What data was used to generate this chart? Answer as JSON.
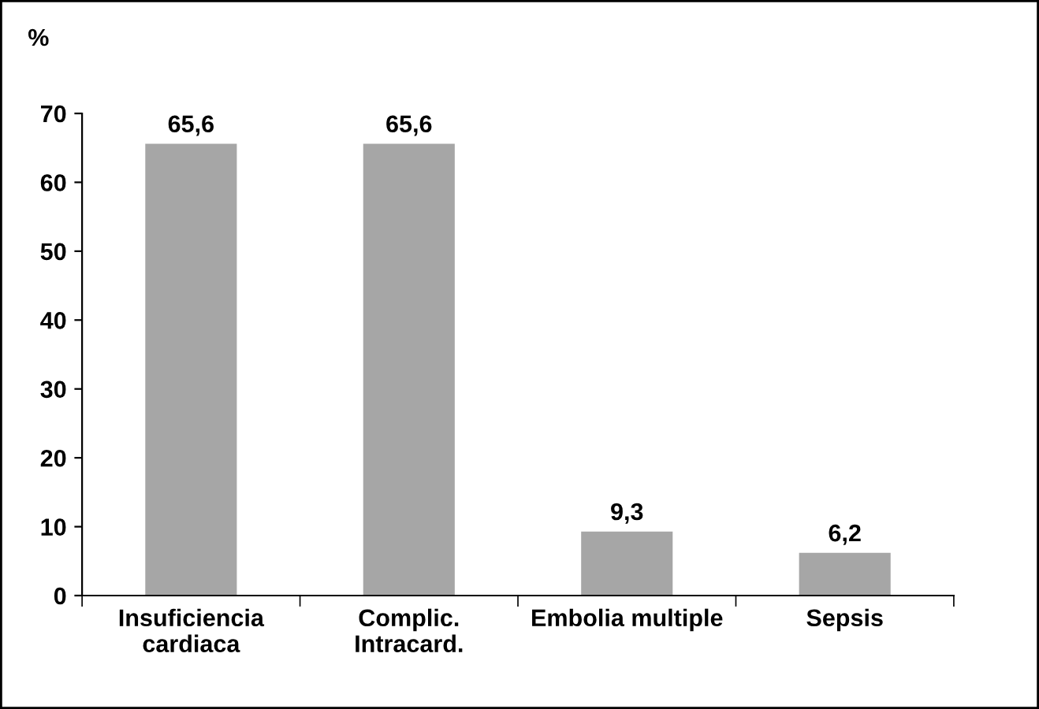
{
  "chart_data": {
    "type": "bar",
    "ylabel": "%",
    "categories": [
      "Insuficiencia\ncardiaca",
      "Complic.\nIntracard.",
      "Embolia multiple",
      "Sepsis"
    ],
    "values": [
      65.6,
      65.6,
      9.3,
      6.2
    ],
    "value_labels": [
      "65,6",
      "65,6",
      "9,3",
      "6,2"
    ],
    "color": "#a6a6a6",
    "ylim": [
      0,
      70
    ],
    "yticks": [
      0,
      10,
      20,
      30,
      40,
      50,
      60,
      70
    ],
    "grid": false,
    "legend": false
  }
}
